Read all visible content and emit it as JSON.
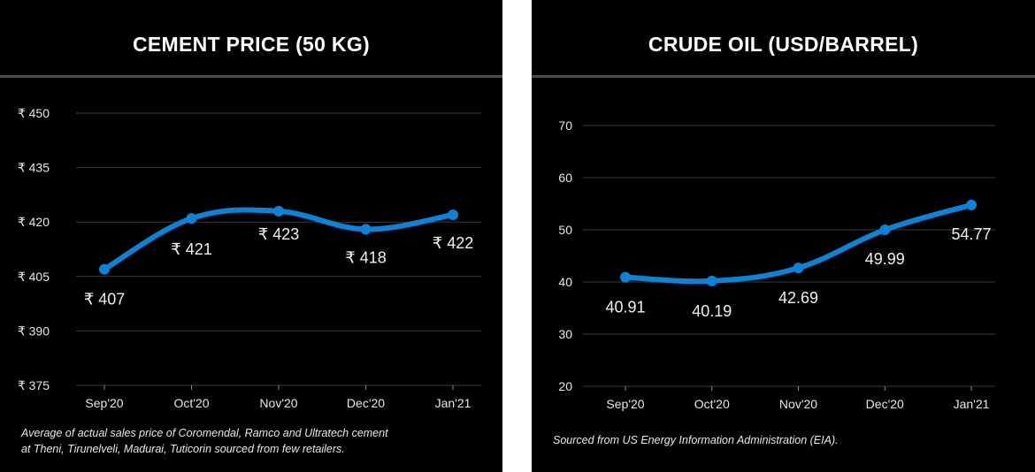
{
  "chart_data": [
    {
      "type": "line",
      "title": "CEMENT PRICE (50 KG)",
      "categories": [
        "Sep'20",
        "Oct'20",
        "Nov'20",
        "Dec'20",
        "Jan'21"
      ],
      "values": [
        407,
        421,
        423,
        418,
        422
      ],
      "data_labels": [
        "₹ 407",
        "₹ 421",
        "₹ 423",
        "₹ 418",
        "₹ 422"
      ],
      "yticks": [
        375,
        390,
        405,
        420,
        435,
        450
      ],
      "ytick_labels": [
        "₹ 375",
        "₹ 390",
        "₹ 405",
        "₹ 420",
        "₹ 435",
        "₹ 450"
      ],
      "ylim": [
        375,
        450
      ],
      "grid": true,
      "smooth": true,
      "line_color": "#0a84d8",
      "footnote": [
        "Average of actual sales price of Coromendal, Ramco and Ultratech cement",
        "at Theni, Tirunelveli, Madurai, Tuticorin sourced from few retailers."
      ]
    },
    {
      "type": "line",
      "title": "CRUDE OIL (USD/BARREL)",
      "categories": [
        "Sep'20",
        "Oct'20",
        "Nov'20",
        "Dec'20",
        "Jan'21"
      ],
      "values": [
        40.91,
        40.19,
        42.69,
        49.99,
        54.77
      ],
      "data_labels": [
        "40.91",
        "40.19",
        "42.69",
        "49.99",
        "54.77"
      ],
      "yticks": [
        20,
        30,
        40,
        50,
        60,
        70
      ],
      "ytick_labels": [
        "20",
        "30",
        "40",
        "50",
        "60",
        "70"
      ],
      "ylim": [
        20,
        70
      ],
      "grid": true,
      "smooth": true,
      "line_color": "#0a84d8",
      "footnote": [
        "Sourced from US Energy Information Administration (EIA)."
      ]
    }
  ],
  "colors": {
    "background": "#000000",
    "separator": "#ffffff",
    "gridline": "#3a3a3a",
    "rule": "#4a4a4a",
    "text": "#ffffff"
  }
}
